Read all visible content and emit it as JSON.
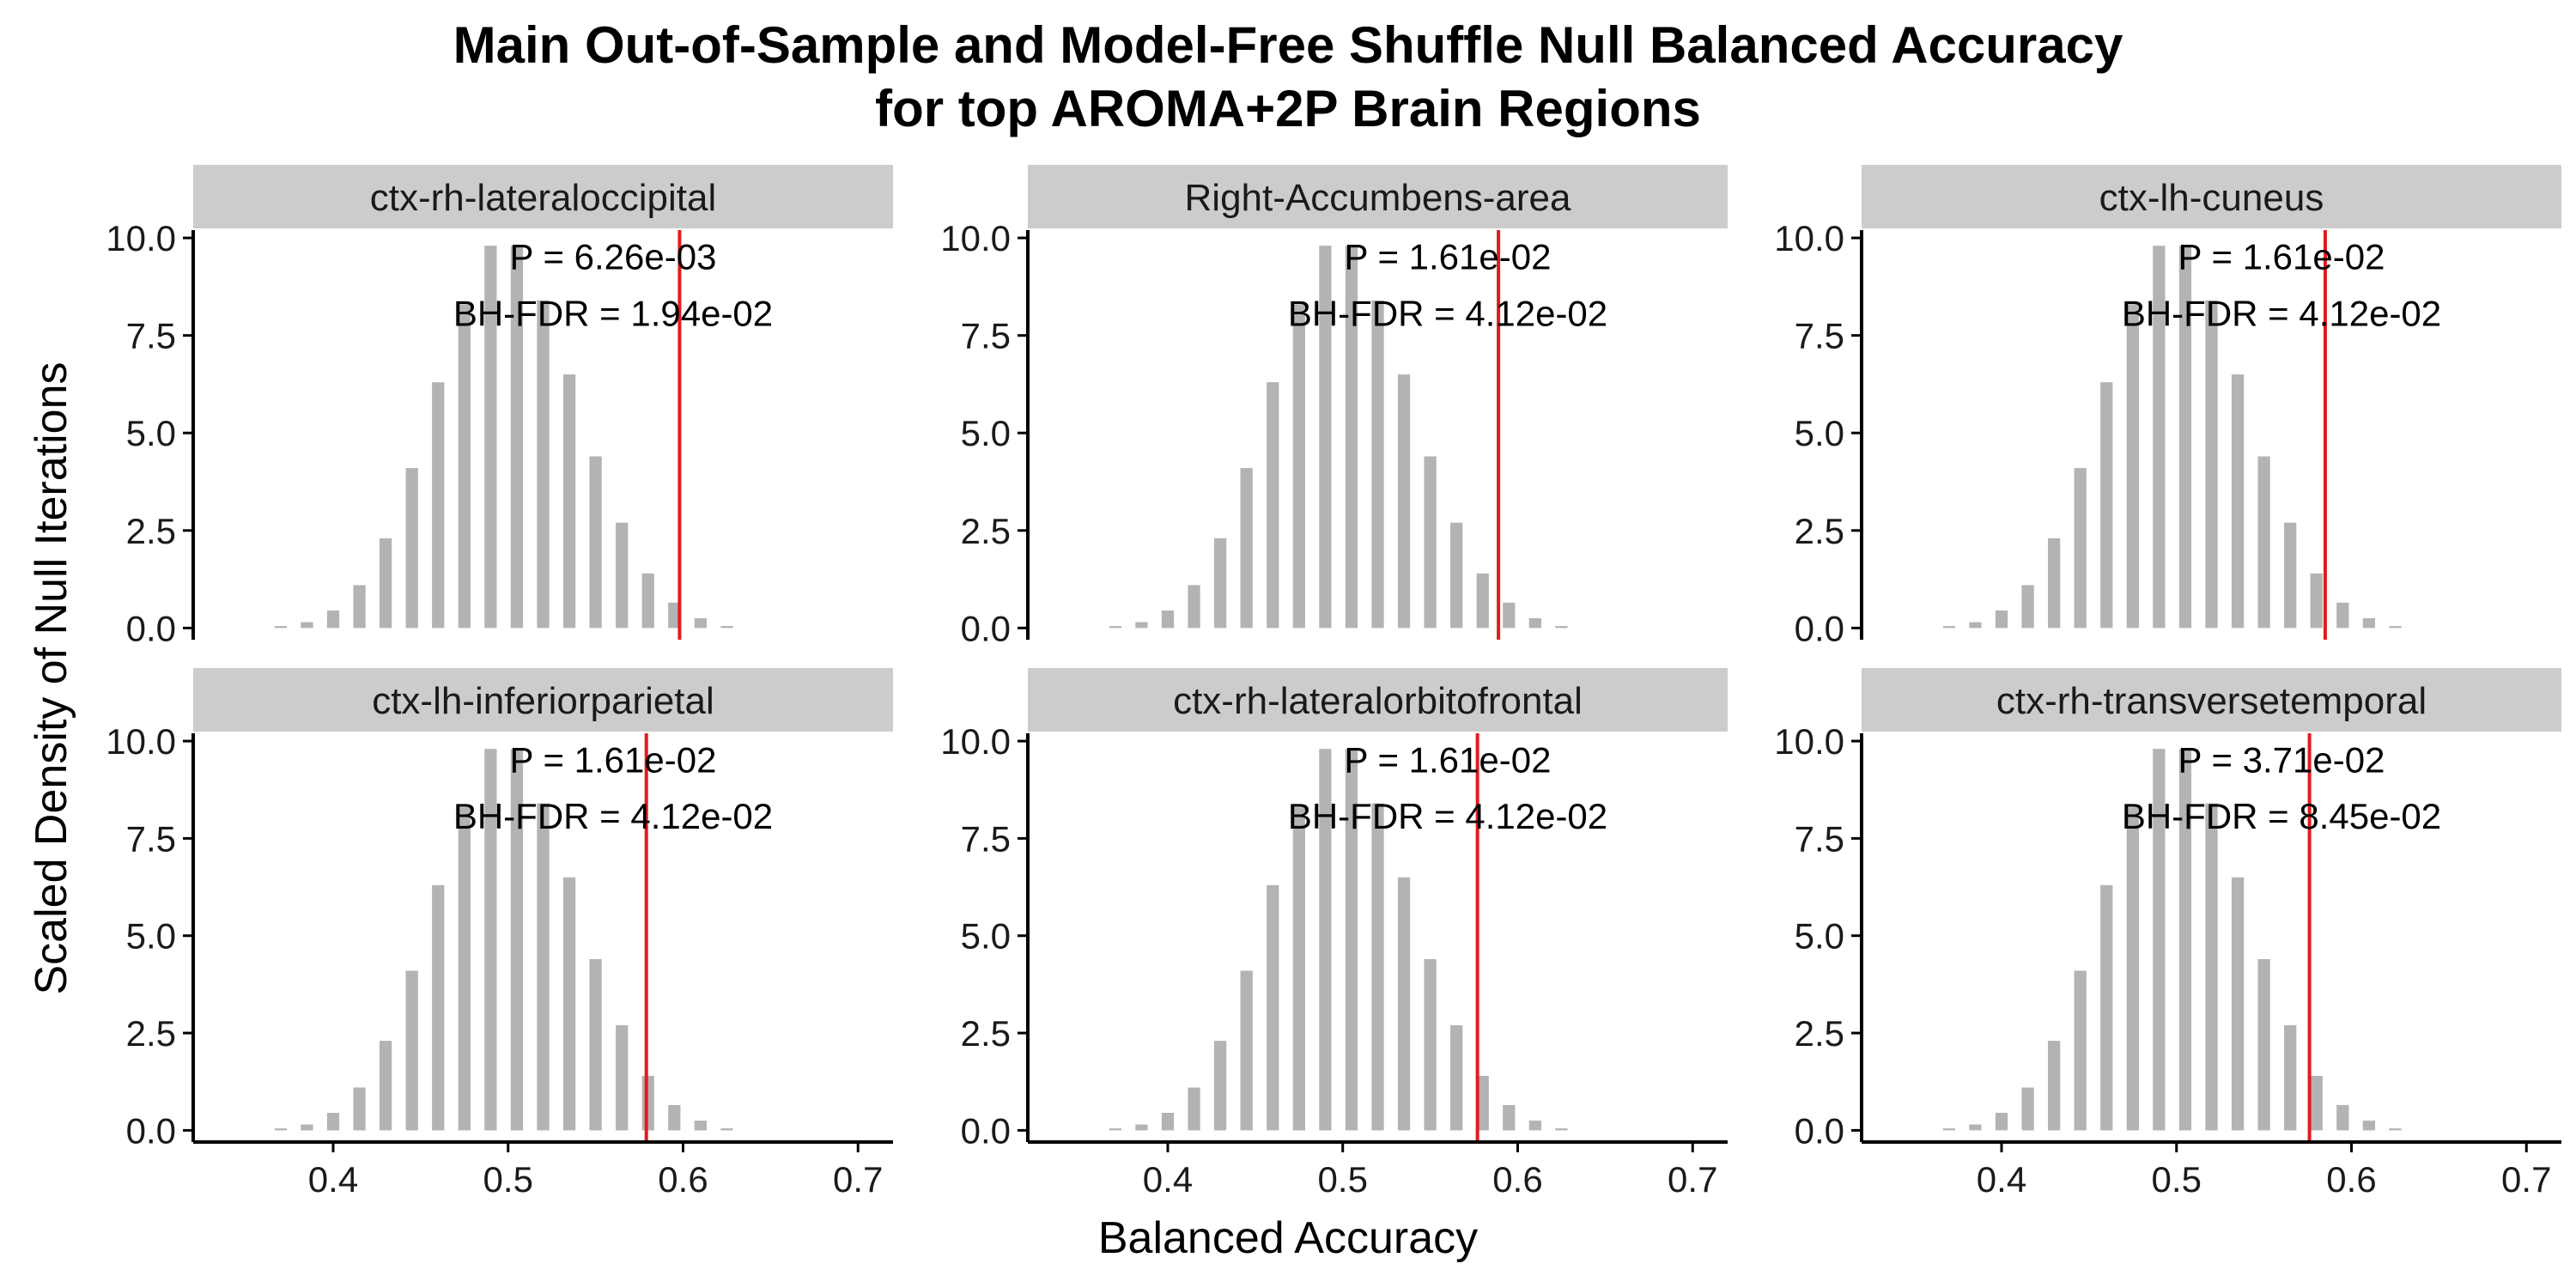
{
  "title": {
    "line1": "Main Out-of-Sample and Model-Free Shuffle Null Balanced Accuracy",
    "line2": "for top AROMA+2P Brain Regions"
  },
  "chart_data": {
    "type": "bar",
    "xlabel": "Balanced Accuracy",
    "ylabel": "Scaled Density of Null Iterations",
    "xlim": [
      0.32,
      0.72
    ],
    "ylim": [
      -0.3,
      10.2
    ],
    "x_ticks": [
      "0.4",
      "0.5",
      "0.6",
      "0.7"
    ],
    "y_ticks": [
      "0.0",
      "2.5",
      "5.0",
      "7.5",
      "10.0"
    ],
    "bar_color": "#b3b3b3",
    "line_color": "#e31a1c",
    "strip_color": "#cccccc",
    "null_histogram": {
      "x": [
        0.37,
        0.385,
        0.4,
        0.415,
        0.43,
        0.445,
        0.46,
        0.475,
        0.49,
        0.505,
        0.52,
        0.535,
        0.55,
        0.565,
        0.58,
        0.595,
        0.61,
        0.625
      ],
      "values": [
        0.05,
        0.15,
        0.45,
        1.1,
        2.3,
        4.1,
        6.3,
        8.3,
        9.8,
        9.8,
        8.4,
        6.5,
        4.4,
        2.7,
        1.4,
        0.65,
        0.25,
        0.05
      ]
    },
    "panels": [
      {
        "name": "ctx-rh-lateraloccipital",
        "observed": 0.598,
        "p_label": "P = 6.26e-03",
        "fdr_label": "BH-FDR = 1.94e-02"
      },
      {
        "name": "Right-Accumbens-area",
        "observed": 0.589,
        "p_label": "P = 1.61e-02",
        "fdr_label": "BH-FDR = 4.12e-02"
      },
      {
        "name": "ctx-lh-cuneus",
        "observed": 0.585,
        "p_label": "P = 1.61e-02",
        "fdr_label": "BH-FDR = 4.12e-02"
      },
      {
        "name": "ctx-lh-inferiorparietal",
        "observed": 0.579,
        "p_label": "P = 1.61e-02",
        "fdr_label": "BH-FDR = 4.12e-02"
      },
      {
        "name": "ctx-rh-lateralorbitofrontal",
        "observed": 0.577,
        "p_label": "P = 1.61e-02",
        "fdr_label": "BH-FDR = 4.12e-02"
      },
      {
        "name": "ctx-rh-transversetemporal",
        "observed": 0.576,
        "p_label": "P = 3.71e-02",
        "fdr_label": "BH-FDR = 8.45e-02"
      }
    ]
  }
}
